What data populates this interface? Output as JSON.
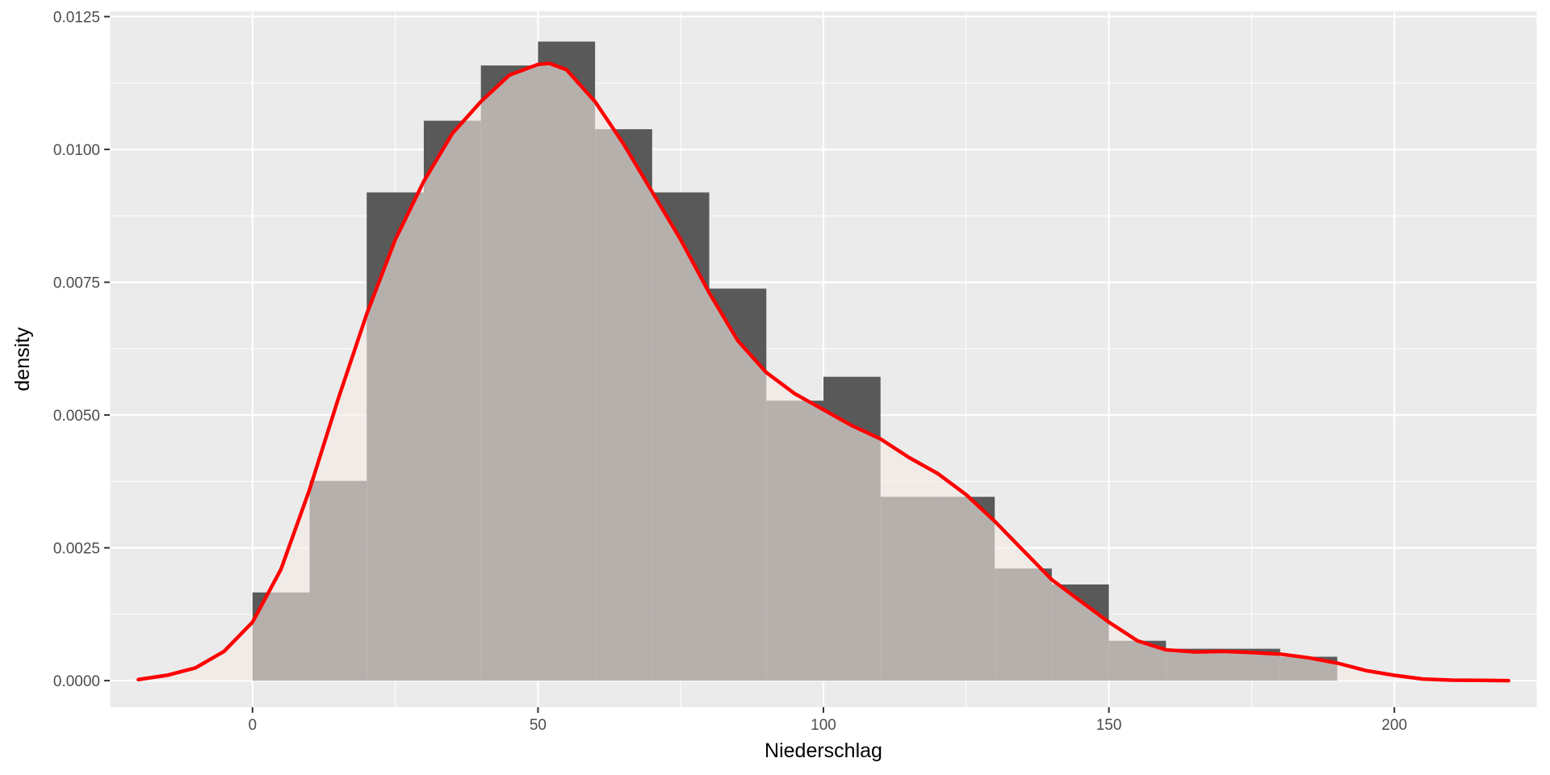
{
  "chart_data": {
    "type": "bar",
    "xlabel": "Niederschlag",
    "ylabel": "density",
    "xlim": [
      -25,
      225
    ],
    "ylim": [
      -0.0005,
      0.0126
    ],
    "x_ticks": [
      0,
      50,
      100,
      150,
      200
    ],
    "x_tick_labels": [
      "0",
      "50",
      "100",
      "150",
      "200"
    ],
    "y_ticks": [
      0,
      0.0025,
      0.005,
      0.0075,
      0.01,
      0.0125
    ],
    "y_tick_labels": [
      "0.0000",
      "0.0025",
      "0.0050",
      "0.0075",
      "0.0100",
      "0.0125"
    ],
    "grid": true,
    "colors": {
      "panel": "#ebebeb",
      "grid": "#ffffff",
      "histogram": "#595959",
      "density_fill": "#f5ebe6",
      "density_fill_opacity": 0.6,
      "density_line": "#ff0000"
    },
    "histogram": {
      "bin_width": 10,
      "bins": [
        {
          "start": 0,
          "end": 10,
          "density": 0.00166
        },
        {
          "start": 10,
          "end": 20,
          "density": 0.00376
        },
        {
          "start": 20,
          "end": 30,
          "density": 0.00919
        },
        {
          "start": 30,
          "end": 40,
          "density": 0.01054
        },
        {
          "start": 40,
          "end": 50,
          "density": 0.01158
        },
        {
          "start": 50,
          "end": 60,
          "density": 0.01203
        },
        {
          "start": 60,
          "end": 70,
          "density": 0.01038
        },
        {
          "start": 70,
          "end": 80,
          "density": 0.00919
        },
        {
          "start": 80,
          "end": 90,
          "density": 0.00738
        },
        {
          "start": 90,
          "end": 100,
          "density": 0.00527
        },
        {
          "start": 100,
          "end": 110,
          "density": 0.00572
        },
        {
          "start": 110,
          "end": 120,
          "density": 0.00346
        },
        {
          "start": 120,
          "end": 130,
          "density": 0.00346
        },
        {
          "start": 130,
          "end": 140,
          "density": 0.00211
        },
        {
          "start": 140,
          "end": 150,
          "density": 0.00181
        },
        {
          "start": 150,
          "end": 160,
          "density": 0.00075
        },
        {
          "start": 160,
          "end": 170,
          "density": 0.0006
        },
        {
          "start": 170,
          "end": 180,
          "density": 0.0006
        },
        {
          "start": 180,
          "end": 190,
          "density": 0.00045
        }
      ]
    },
    "density_curve": {
      "x": [
        -20,
        -15,
        -10,
        -5,
        0,
        5,
        10,
        15,
        20,
        25,
        30,
        35,
        40,
        45,
        50,
        52,
        55,
        60,
        65,
        70,
        75,
        80,
        85,
        90,
        95,
        100,
        105,
        110,
        115,
        120,
        125,
        130,
        135,
        140,
        145,
        150,
        155,
        160,
        165,
        170,
        175,
        180,
        185,
        190,
        195,
        200,
        205,
        210,
        215,
        220
      ],
      "y": [
        2e-05,
        0.0001,
        0.00024,
        0.00055,
        0.0011,
        0.0021,
        0.0036,
        0.0053,
        0.0069,
        0.0083,
        0.0094,
        0.0103,
        0.0109,
        0.0114,
        0.0116,
        0.01162,
        0.0115,
        0.0109,
        0.0101,
        0.0092,
        0.0083,
        0.0073,
        0.0064,
        0.0058,
        0.0054,
        0.0051,
        0.0048,
        0.00455,
        0.0042,
        0.0039,
        0.0035,
        0.003,
        0.00245,
        0.0019,
        0.0015,
        0.0011,
        0.00075,
        0.00058,
        0.00054,
        0.00055,
        0.00053,
        0.0005,
        0.00043,
        0.00033,
        0.00019,
        0.0001,
        3e-05,
        1e-05,
        5e-06,
        0.0
      ]
    }
  }
}
